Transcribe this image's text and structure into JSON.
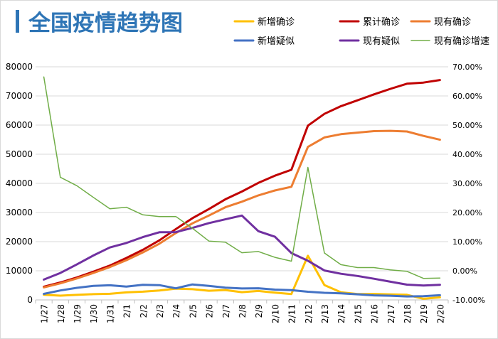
{
  "chart_data": {
    "type": "line",
    "title": "全国疫情趋势图",
    "x": [
      "1/27",
      "1/28",
      "1/29",
      "1/30",
      "1/31",
      "2/1",
      "2/2",
      "2/3",
      "2/4",
      "2/5",
      "2/6",
      "2/7",
      "2/8",
      "2/9",
      "2/10",
      "2/11",
      "2/12",
      "2/13",
      "2/14",
      "2/15",
      "2/16",
      "2/17",
      "2/18",
      "2/19",
      "2/20"
    ],
    "ylim_left": [
      0,
      80000
    ],
    "yticks_left": [
      "0",
      "10000",
      "20000",
      "30000",
      "40000",
      "50000",
      "60000",
      "70000",
      "80000"
    ],
    "ylim_right": [
      -0.1,
      0.7
    ],
    "yticks_right": [
      "-10.00%",
      "0.00%",
      "10.00%",
      "20.00%",
      "30.00%",
      "40.00%",
      "50.00%",
      "60.00%",
      "70.00%"
    ],
    "grid": true,
    "legend_position": "top",
    "series": [
      {
        "name": "新增确诊",
        "color": "#FFC000",
        "axis": "left",
        "values": [
          1771,
          1459,
          1737,
          1982,
          2102,
          2590,
          2829,
          3235,
          3887,
          3694,
          3143,
          3399,
          2656,
          3062,
          2478,
          2015,
          15152,
          5090,
          2641,
          2009,
          2048,
          1886,
          1749,
          394,
          889
        ]
      },
      {
        "name": "累计确诊",
        "color": "#C00000",
        "axis": "left",
        "values": [
          4515,
          5974,
          7711,
          9692,
          11791,
          14380,
          17205,
          20438,
          24324,
          28018,
          31161,
          34546,
          37198,
          40171,
          42638,
          44653,
          59804,
          63851,
          66492,
          68500,
          70548,
          72436,
          74185,
          74576,
          75465
        ]
      },
      {
        "name": "现有确诊",
        "color": "#ED7D31",
        "axis": "left",
        "values": [
          4283,
          5690,
          7368,
          9240,
          11268,
          13626,
          16293,
          19288,
          22942,
          26273,
          28942,
          31800,
          33697,
          35889,
          37560,
          38818,
          52520,
          55748,
          56873,
          57416,
          57934,
          58016,
          57805,
          56303,
          54965
        ]
      },
      {
        "name": "新增疑似",
        "color": "#4472C4",
        "axis": "left",
        "values": [
          2077,
          3248,
          4148,
          4812,
          5019,
          4562,
          5173,
          5072,
          3971,
          5328,
          4833,
          4214,
          3916,
          4008,
          3536,
          3342,
          2807,
          2450,
          2277,
          1918,
          1563,
          1432,
          1185,
          1277,
          1614
        ]
      },
      {
        "name": "现有疑似",
        "color": "#7030A0",
        "axis": "left",
        "values": [
          6973,
          9239,
          12167,
          15238,
          17988,
          19544,
          21558,
          23214,
          23260,
          24702,
          26359,
          27657,
          28942,
          23589,
          21675,
          16067,
          13435,
          10109,
          8969,
          8228,
          7264,
          6242,
          5248,
          4922,
          5206
        ]
      },
      {
        "name": "现有确诊增速",
        "color": "#70AD47",
        "axis": "right",
        "values": [
          0.665,
          0.321,
          0.292,
          0.252,
          0.213,
          0.218,
          0.192,
          0.186,
          0.186,
          0.146,
          0.102,
          0.098,
          0.062,
          0.066,
          0.046,
          0.033,
          0.355,
          0.061,
          0.021,
          0.011,
          0.011,
          0.003,
          -0.002,
          -0.026,
          -0.025
        ]
      }
    ]
  }
}
